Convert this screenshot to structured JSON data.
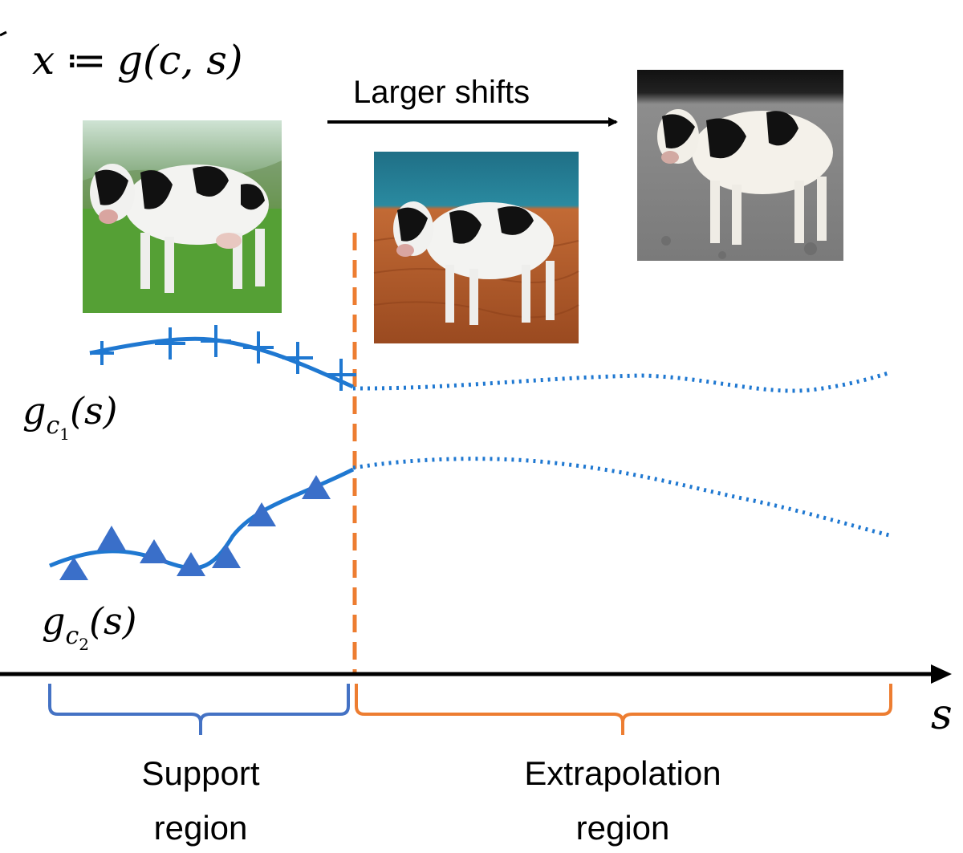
{
  "formula": {
    "lhs": "x",
    "op": " ≔ ",
    "rhs": "g(c, s)"
  },
  "arrow_label": "Larger shifts",
  "curve1_label": {
    "base": "g",
    "sub": "c",
    "subsub": "1",
    "arg": "(s)"
  },
  "curve2_label": {
    "base": "g",
    "sub": "c",
    "subsub": "2",
    "arg": "(s)"
  },
  "axis_label": "s",
  "support_region": {
    "line1": "Support",
    "line2": "region"
  },
  "extrapolation_region": {
    "line1": "Extrapolation",
    "line2": "region"
  },
  "images": [
    {
      "name": "cow-on-grass-image",
      "scene": "grass"
    },
    {
      "name": "cow-on-desert-image",
      "scene": "desert"
    },
    {
      "name": "cow-on-moon-image",
      "scene": "moon"
    }
  ],
  "colors": {
    "curve": "#1f78d1",
    "triangle_marker": "#3a6fc9",
    "support_bracket": "#4472c4",
    "extrapolation": "#ed7d31",
    "axis": "#000000"
  }
}
